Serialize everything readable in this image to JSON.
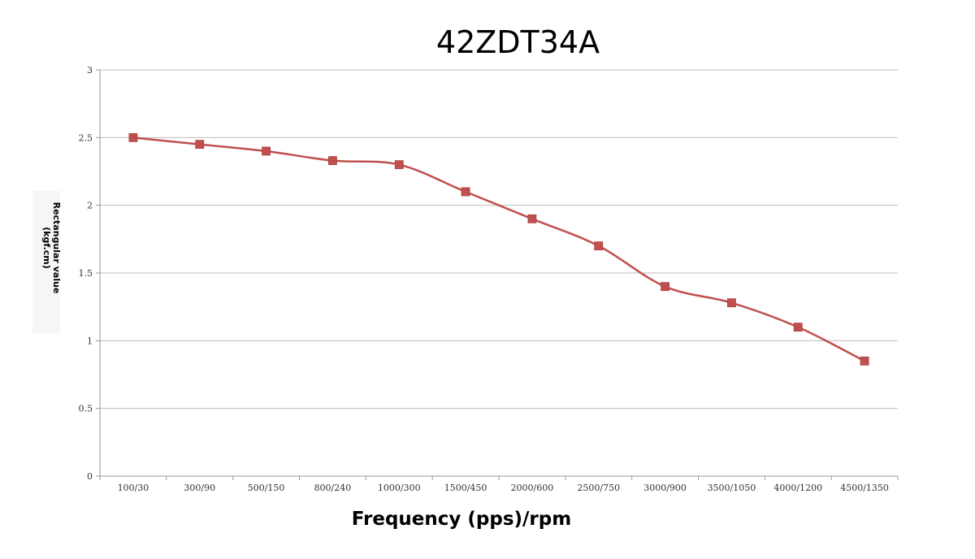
{
  "chart_data": {
    "type": "line",
    "title": "42ZDT34A",
    "xlabel": "Frequency (pps)/rpm",
    "ylabel_lines": [
      "Rectangular value",
      "(kgf.cm)"
    ],
    "categories": [
      "100/30",
      "300/90",
      "500/150",
      "800/240",
      "1000/300",
      "1500/450",
      "2000/600",
      "2500/750",
      "3000/900",
      "3500/1050",
      "4000/1200",
      "4500/1350"
    ],
    "series": [
      {
        "values": [
          2.5,
          2.45,
          2.4,
          2.33,
          2.3,
          2.1,
          1.9,
          1.7,
          1.4,
          1.28,
          1.1,
          0.85
        ],
        "color": "#c0504d"
      }
    ],
    "yticks": [
      "0",
      "0.5",
      "1",
      "1.5",
      "2",
      "2.5",
      "3"
    ],
    "ylim": [
      0,
      3
    ],
    "grid": true,
    "legend": "none",
    "line_style": "smooth",
    "marker": "square"
  }
}
